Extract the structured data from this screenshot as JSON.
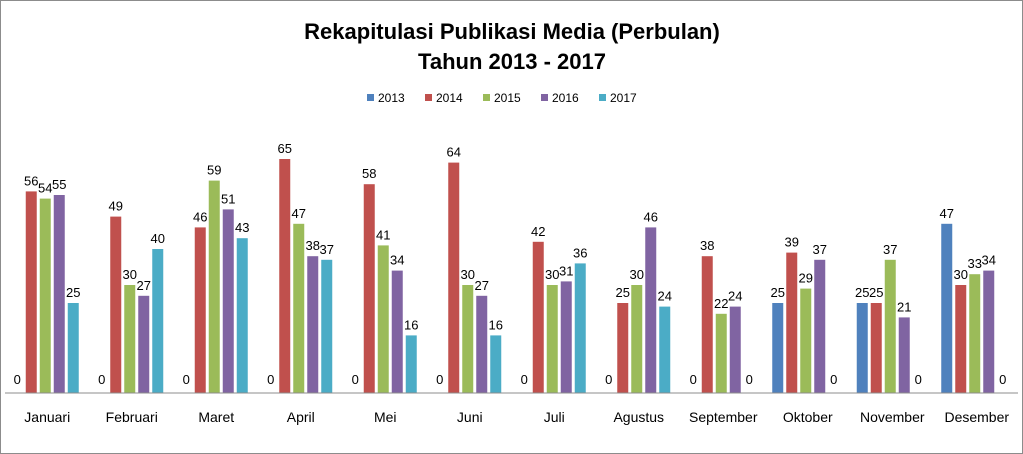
{
  "chart_data": {
    "type": "bar",
    "title": [
      "Rekapitulasi Publikasi Media (Perbulan)",
      "Tahun 2013 - 2017"
    ],
    "xlabel": "",
    "ylabel": "",
    "legend_position": "top",
    "grid": false,
    "ylim": [
      0,
      70
    ],
    "categories": [
      "Januari",
      "Februari",
      "Maret",
      "April",
      "Mei",
      "Juni",
      "Juli",
      "Agustus",
      "September",
      "Oktober",
      "November",
      "Desember"
    ],
    "series": [
      {
        "name": "2013",
        "color": "#4f81bd",
        "values": [
          0,
          0,
          0,
          0,
          0,
          0,
          0,
          0,
          0,
          25,
          25,
          47
        ]
      },
      {
        "name": "2014",
        "color": "#c0504d",
        "values": [
          56,
          49,
          46,
          65,
          58,
          64,
          42,
          25,
          38,
          39,
          25,
          30
        ]
      },
      {
        "name": "2015",
        "color": "#9bbb59",
        "values": [
          54,
          30,
          59,
          47,
          41,
          30,
          30,
          30,
          22,
          29,
          37,
          33
        ]
      },
      {
        "name": "2016",
        "color": "#8064a2",
        "values": [
          55,
          27,
          51,
          38,
          34,
          27,
          31,
          46,
          24,
          37,
          21,
          34
        ]
      },
      {
        "name": "2017",
        "color": "#4bacc6",
        "values": [
          25,
          40,
          43,
          37,
          16,
          16,
          36,
          24,
          0,
          0,
          0,
          0
        ]
      }
    ]
  }
}
